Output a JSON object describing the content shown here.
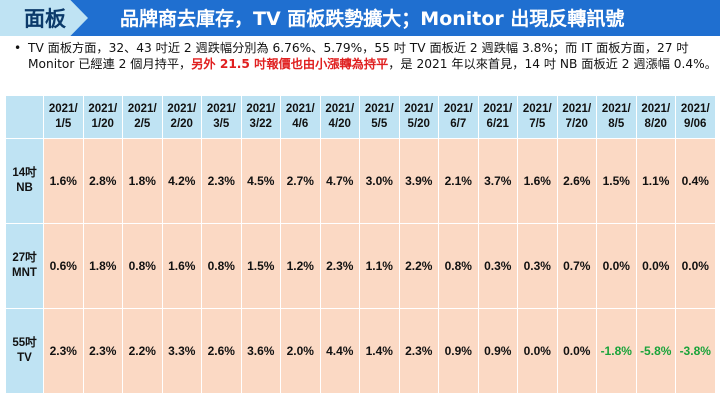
{
  "header": {
    "tag": "面板",
    "title": "品牌商去庫存，TV 面板跌勢擴大；Monitor 出現反轉訊號"
  },
  "bullet": {
    "dot": "•",
    "text_before": "TV 面板方面，32、43 吋近 2 週跌幅分別為 6.76%、5.79%，55 吋 TV 面板近 2 週跌幅 3.8%；而 IT 面板方面，27 吋 Monitor 已經連 2 個月持平，",
    "text_highlight": "另外 21.5 吋報價也由小漲轉為持平",
    "text_after": "，是 2021 年以來首見，14 吋 NB 面板近 2 週漲幅 0.4%。"
  },
  "table": {
    "columns": [
      "2021/\n1/5",
      "2021/\n1/20",
      "2021/\n2/5",
      "2021/\n2/20",
      "2021/\n3/5",
      "2021/\n3/22",
      "2021/\n4/6",
      "2021/\n4/20",
      "2021/\n5/5",
      "2021/\n5/20",
      "2021/\n6/7",
      "2021/\n6/21",
      "2021/\n7/5",
      "2021/\n7/20",
      "2021/\n8/5",
      "2021/\n8/20",
      "2021/\n9/06"
    ],
    "rows": [
      {
        "label": "14吋\nNB",
        "values": [
          "1.6%",
          "2.8%",
          "1.8%",
          "4.2%",
          "2.3%",
          "4.5%",
          "2.7%",
          "4.7%",
          "3.0%",
          "3.9%",
          "2.1%",
          "3.7%",
          "1.6%",
          "2.6%",
          "1.5%",
          "1.1%",
          "0.4%"
        ]
      },
      {
        "label": "27吋\nMNT",
        "values": [
          "0.6%",
          "1.8%",
          "0.8%",
          "1.6%",
          "0.8%",
          "1.5%",
          "1.2%",
          "2.3%",
          "1.1%",
          "2.2%",
          "0.8%",
          "0.3%",
          "0.3%",
          "0.7%",
          "0.0%",
          "0.0%",
          "0.0%"
        ]
      },
      {
        "label": "55吋\nTV",
        "values": [
          "2.3%",
          "2.3%",
          "2.2%",
          "3.3%",
          "2.6%",
          "3.6%",
          "2.0%",
          "4.4%",
          "1.4%",
          "2.3%",
          "0.9%",
          "0.9%",
          "0.0%",
          "0.0%",
          "-1.8%",
          "-5.8%",
          "-3.8%"
        ]
      }
    ]
  },
  "colors": {
    "header_blue": "#1f6fd0",
    "light_blue": "#bfe3f3",
    "cell_peach": "#fbd9c4",
    "highlight_red": "#e02020",
    "negative_green": "#1aa33a"
  }
}
